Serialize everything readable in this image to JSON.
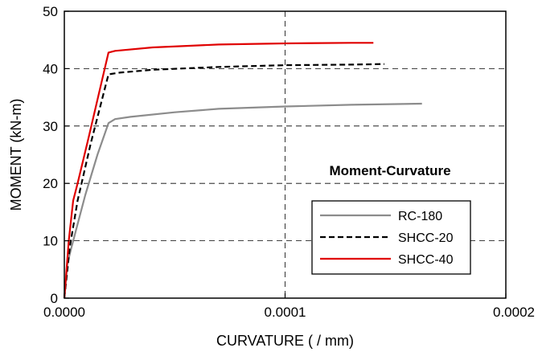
{
  "chart_data": {
    "type": "line",
    "xlabel": "CURVATURE ( / mm)",
    "ylabel": "MOMENT (kN-m)",
    "xlim": [
      0,
      0.0002
    ],
    "ylim": [
      0,
      50
    ],
    "x_ticks": [
      0,
      0.0001,
      0.0002
    ],
    "x_tick_labels": [
      "0.0000",
      "0.0001",
      "0.0002"
    ],
    "y_ticks": [
      0,
      10,
      20,
      30,
      40,
      50
    ],
    "y_tick_labels": [
      "0",
      "10",
      "20",
      "30",
      "40",
      "50"
    ],
    "grid": "dashed at 10 kN-m intervals and x = 0.0001",
    "legend_position": "bottom-right",
    "annotation": "Moment-Curvature",
    "series": [
      {
        "name": "RC-180",
        "color": "#8c8c8c",
        "dash": "solid",
        "points": [
          [
            0,
            0
          ],
          [
            7e-07,
            3
          ],
          [
            1.4e-06,
            6
          ],
          [
            3e-06,
            8.5
          ],
          [
            9.5e-06,
            18
          ],
          [
            1.5e-05,
            25
          ],
          [
            2e-05,
            30.5
          ],
          [
            2.3e-05,
            31.2
          ],
          [
            3e-05,
            31.6
          ],
          [
            5e-05,
            32.4
          ],
          [
            7e-05,
            33
          ],
          [
            0.0001,
            33.4
          ],
          [
            0.00013,
            33.7
          ],
          [
            0.000162,
            33.9
          ]
        ]
      },
      {
        "name": "SHCC-20",
        "color": "#000000",
        "dash": "dashed",
        "points": [
          [
            0,
            0
          ],
          [
            2.5e-06,
            9
          ],
          [
            6e-06,
            17
          ],
          [
            1.2e-05,
            27
          ],
          [
            2e-05,
            39
          ],
          [
            2.5e-05,
            39.3
          ],
          [
            4e-05,
            39.8
          ],
          [
            7e-05,
            40.3
          ],
          [
            0.0001,
            40.6
          ],
          [
            0.00013,
            40.7
          ],
          [
            0.000145,
            40.8
          ]
        ]
      },
      {
        "name": "SHCC-40",
        "color": "#e00000",
        "dash": "solid",
        "points": [
          [
            0,
            0
          ],
          [
            2e-06,
            10
          ],
          [
            4e-06,
            17
          ],
          [
            6e-06,
            20
          ],
          [
            1.1e-05,
            28
          ],
          [
            2e-05,
            42.8
          ],
          [
            2.3e-05,
            43.1
          ],
          [
            4e-05,
            43.7
          ],
          [
            7e-05,
            44.2
          ],
          [
            0.0001,
            44.4
          ],
          [
            0.00013,
            44.5
          ],
          [
            0.00014,
            44.5
          ]
        ]
      }
    ]
  }
}
